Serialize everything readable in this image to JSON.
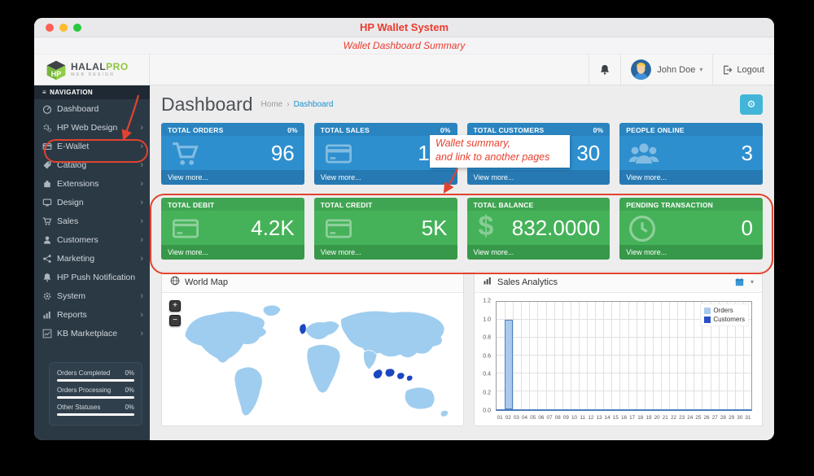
{
  "window": {
    "title": "HP Wallet System",
    "subtitle": "Wallet Dashboard Summary"
  },
  "header": {
    "logo": {
      "brand_1": "HALAL",
      "brand_2": "PRO",
      "tagline": "WEB DESIGN",
      "cube_text": "HP"
    },
    "user": {
      "name": "John Doe",
      "logout_label": "Logout"
    }
  },
  "icons": {
    "menu": "≡",
    "chevron": "›",
    "caret": "▾",
    "breadcrumb_sep": "›",
    "gear": "⚙",
    "plus": "+",
    "minus": "−",
    "dollar": "$"
  },
  "sidebar": {
    "nav_header": "NAVIGATION",
    "items": [
      {
        "label": "Dashboard"
      },
      {
        "label": "HP Web Design"
      },
      {
        "label": "E-Wallet"
      },
      {
        "label": "Catalog"
      },
      {
        "label": "Extensions"
      },
      {
        "label": "Design"
      },
      {
        "label": "Sales"
      },
      {
        "label": "Customers"
      },
      {
        "label": "Marketing"
      },
      {
        "label": "HP Push Notification"
      },
      {
        "label": "System"
      },
      {
        "label": "Reports"
      },
      {
        "label": "KB Marketplace"
      }
    ],
    "stats": [
      {
        "label": "Orders Completed",
        "value": "0%"
      },
      {
        "label": "Orders Processing",
        "value": "0%"
      },
      {
        "label": "Other Statuses",
        "value": "0%"
      }
    ]
  },
  "page": {
    "title": "Dashboard",
    "breadcrumb_home": "Home",
    "breadcrumb_current": "Dashboard"
  },
  "tiles": {
    "blue": [
      {
        "title": "TOTAL ORDERS",
        "badge": "0%",
        "value": "96",
        "footer": "View more..."
      },
      {
        "title": "TOTAL SALES",
        "badge": "0%",
        "value": "1.7",
        "footer": "View more..."
      },
      {
        "title": "TOTAL CUSTOMERS",
        "badge": "0%",
        "value": "30",
        "footer": "View more..."
      },
      {
        "title": "PEOPLE ONLINE",
        "badge": "",
        "value": "3",
        "footer": "View more..."
      }
    ],
    "green": [
      {
        "title": "TOTAL DEBIT",
        "value": "4.2K",
        "footer": "View more..."
      },
      {
        "title": "TOTAL CREDIT",
        "value": "5K",
        "footer": "View more..."
      },
      {
        "title": "TOTAL BALANCE",
        "value": "832.0000",
        "footer": "View more..."
      },
      {
        "title": "PENDING TRANSACTION",
        "value": "0",
        "footer": "View more..."
      }
    ]
  },
  "panels": {
    "world_map": {
      "title": "World Map"
    },
    "sales_analytics": {
      "title": "Sales Analytics"
    }
  },
  "chart_data": {
    "type": "bar",
    "title": "Sales Analytics",
    "x": [
      "01",
      "02",
      "03",
      "04",
      "05",
      "06",
      "07",
      "08",
      "09",
      "10",
      "11",
      "12",
      "13",
      "14",
      "15",
      "16",
      "17",
      "18",
      "19",
      "20",
      "21",
      "22",
      "23",
      "24",
      "25",
      "26",
      "27",
      "28",
      "29",
      "30",
      "31"
    ],
    "series": [
      {
        "name": "Orders",
        "color": "#a9c9ed",
        "border": "#4f81bd",
        "values": [
          0,
          1,
          0,
          0,
          0,
          0,
          0,
          0,
          0,
          0,
          0,
          0,
          0,
          0,
          0,
          0,
          0,
          0,
          0,
          0,
          0,
          0,
          0,
          0,
          0,
          0,
          0,
          0,
          0,
          0,
          0
        ]
      },
      {
        "name": "Customers",
        "color": "#2b50c8",
        "border": "#1f3aa0",
        "values": [
          0,
          0,
          0,
          0,
          0,
          0,
          0,
          0,
          0,
          0,
          0,
          0,
          0,
          0,
          0,
          0,
          0,
          0,
          0,
          0,
          0,
          0,
          0,
          0,
          0,
          0,
          0,
          0,
          0,
          0,
          0
        ]
      }
    ],
    "ylim": [
      0,
      1.2
    ],
    "yticks": [
      0.0,
      0.2,
      0.4,
      0.6,
      0.8,
      1.0,
      1.2
    ],
    "xlabel": "",
    "ylabel": "",
    "legend_position": "top-right",
    "grid": true
  },
  "annotations": {
    "note_line1": "Wallet summary,",
    "note_line2": "and link to another pages"
  },
  "colors": {
    "accent_red": "#e8402f",
    "tile_blue": "#2e8fcf",
    "tile_green": "#45b259",
    "map_land": "#9fcdef",
    "map_highlight": "#1b47c0"
  }
}
